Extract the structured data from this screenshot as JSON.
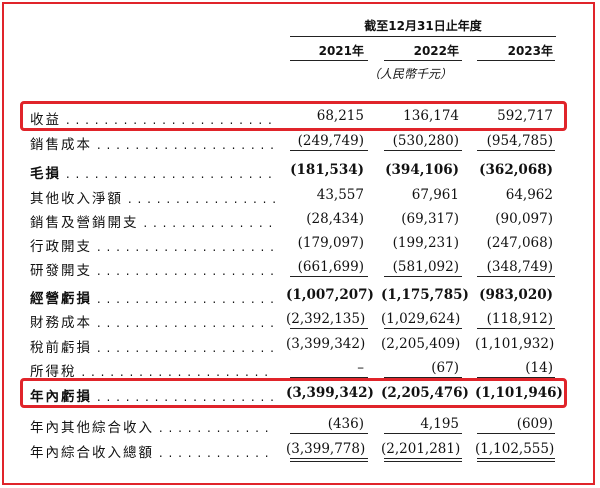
{
  "header": {
    "period": "截至12月31日止年度",
    "years": [
      "2021年",
      "2022年",
      "2023年"
    ],
    "unit": "（人民幣千元）"
  },
  "colors": {
    "highlight": "#e0242a",
    "text": "#111111"
  },
  "rows": [
    {
      "label": "收益",
      "bold": false,
      "values": [
        "68,215",
        "136,174",
        "592,717"
      ],
      "rule": "none"
    },
    {
      "label": "銷售成本",
      "bold": false,
      "values": [
        "(249,749)",
        "(530,280)",
        "(954,785)"
      ],
      "rule": "single"
    },
    {
      "label": "毛損",
      "bold": true,
      "values": [
        "(181,534)",
        "(394,106)",
        "(362,068)"
      ],
      "rule": "none"
    },
    {
      "label": "其他收入淨額",
      "bold": false,
      "values": [
        "43,557",
        "67,961",
        "64,962"
      ],
      "rule": "none"
    },
    {
      "label": "銷售及營銷開支",
      "bold": false,
      "values": [
        "(28,434)",
        "(69,317)",
        "(90,097)"
      ],
      "rule": "none"
    },
    {
      "label": "行政開支",
      "bold": false,
      "values": [
        "(179,097)",
        "(199,231)",
        "(247,068)"
      ],
      "rule": "none"
    },
    {
      "label": "研發開支",
      "bold": false,
      "values": [
        "(661,699)",
        "(581,092)",
        "(348,749)"
      ],
      "rule": "single"
    },
    {
      "label": "經營虧損",
      "bold": true,
      "values": [
        "(1,007,207)",
        "(1,175,785)",
        "(983,020)"
      ],
      "rule": "none"
    },
    {
      "label": "財務成本",
      "bold": false,
      "values": [
        "(2,392,135)",
        "(1,029,624)",
        "(118,912)"
      ],
      "rule": "single"
    },
    {
      "label": "稅前虧損",
      "bold": false,
      "values": [
        "(3,399,342)",
        "(2,205,409)",
        "(1,101,932)"
      ],
      "rule": "none"
    },
    {
      "label": "所得稅",
      "bold": false,
      "values": [
        "–",
        "(67)",
        "(14)"
      ],
      "rule": "single"
    },
    {
      "label": "年內虧損",
      "bold": true,
      "values": [
        "(3,399,342)",
        "(2,205,476)",
        "(1,101,946)"
      ],
      "rule": "none"
    },
    {
      "label": "年內其他綜合收入",
      "bold": false,
      "values": [
        "(436)",
        "4,195",
        "(609)"
      ],
      "rule": "single"
    },
    {
      "label": "年內綜合收入總額",
      "bold": false,
      "values": [
        "(3,399,778)",
        "(2,201,281)",
        "(1,102,555)"
      ],
      "rule": "double"
    }
  ]
}
